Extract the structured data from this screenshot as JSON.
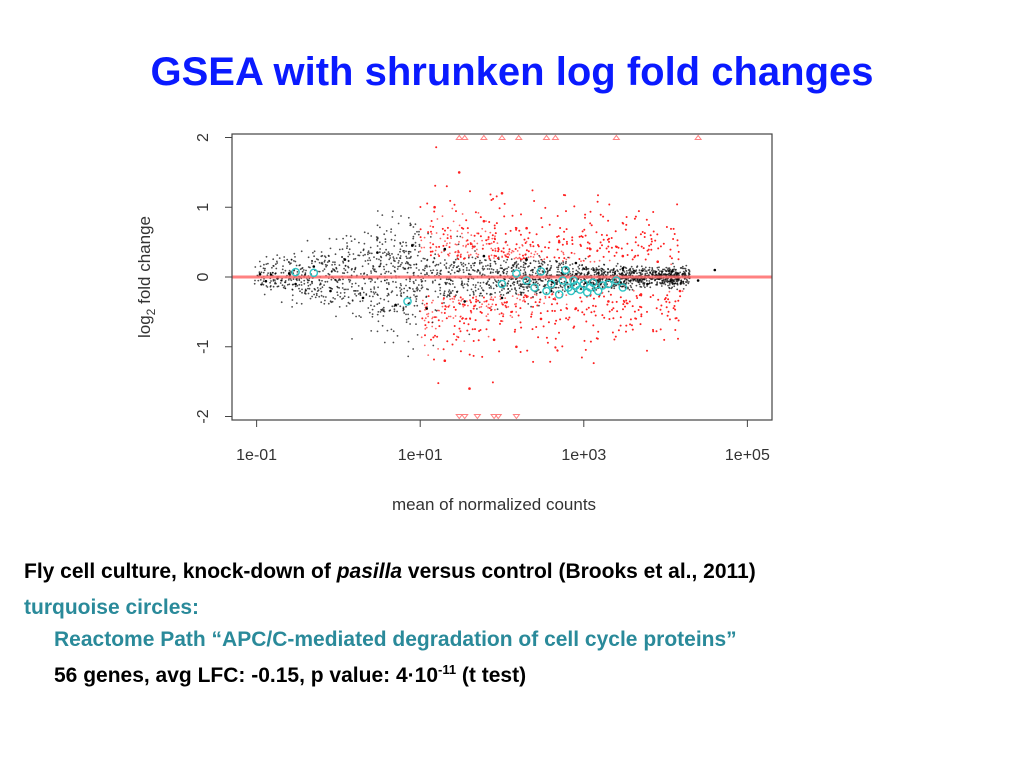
{
  "slide": {
    "title": "GSEA with shrunken log fold changes",
    "caption": {
      "line1_before": "Fly cell culture, knock-down of ",
      "line1_italic": "pasilla",
      "line1_after": " versus control  (Brooks et al., 2011)",
      "line2": "turquoise circles:",
      "line3": "Reactome Path “APC/C-mediated degradation of cell cycle proteins”",
      "line4_before": "56 genes, avg LFC: -0.15,  p value: 4",
      "line4_dot": "·",
      "line4_base": "10",
      "line4_exp": "-11",
      "line4_after": " (t test)"
    }
  },
  "chart_data": {
    "type": "scatter",
    "title": "",
    "xlabel": "mean of normalized counts",
    "ylabel_parts": [
      "log",
      "2",
      " fold change"
    ],
    "x_scale": "log10",
    "xlim": [
      0.05,
      200000
    ],
    "ylim": [
      -2.05,
      2.05
    ],
    "x_ticks": [
      0.1,
      10,
      1000,
      100000
    ],
    "x_tick_labels": [
      "1e-01",
      "1e+01",
      "1e+03",
      "1e+05"
    ],
    "y_ticks": [
      -2,
      -1,
      0,
      1,
      2
    ],
    "y_tick_labels": [
      "-2",
      "-1",
      "0",
      "1",
      "2"
    ],
    "grid": false,
    "reference_line": {
      "y": 0,
      "color": "#ff6b6b"
    },
    "colors": {
      "non_significant": "#000000",
      "significant": "#ff2020",
      "gene_set": "#2ec4c4",
      "off_scale": "#ff8080"
    },
    "series": [
      {
        "description": "non-significant genes (black points)",
        "marker": "dot",
        "points": [
          [
            0.11,
            0.04
          ],
          [
            0.13,
            -0.06
          ],
          [
            0.15,
            0.03
          ],
          [
            0.18,
            -0.02
          ],
          [
            0.25,
            0.05
          ],
          [
            0.3,
            -0.1
          ],
          [
            0.5,
            0.15
          ],
          [
            0.8,
            -0.2
          ],
          [
            1.2,
            0.25
          ],
          [
            2,
            -0.3
          ],
          [
            3,
            0.35
          ],
          [
            5,
            -0.4
          ],
          [
            8,
            0.45
          ],
          [
            12,
            -0.45
          ],
          [
            20,
            0.4
          ],
          [
            35,
            -0.35
          ],
          [
            60,
            0.3
          ],
          [
            100,
            -0.3
          ],
          [
            200,
            0.25
          ],
          [
            400,
            -0.2
          ],
          [
            800,
            0.2
          ],
          [
            1500,
            -0.15
          ],
          [
            3000,
            0.12
          ],
          [
            6000,
            -0.1
          ],
          [
            12000,
            0.08
          ],
          [
            25000,
            -0.05
          ],
          [
            40000,
            0.1
          ]
        ]
      },
      {
        "description": "significant genes (red points)",
        "marker": "dot",
        "points": [
          [
            15,
            1.0
          ],
          [
            20,
            -1.2
          ],
          [
            30,
            1.5
          ],
          [
            40,
            -1.6
          ],
          [
            60,
            0.8
          ],
          [
            80,
            -0.9
          ],
          [
            100,
            1.2
          ],
          [
            150,
            -1.0
          ],
          [
            200,
            0.7
          ],
          [
            300,
            -0.6
          ],
          [
            500,
            0.5
          ],
          [
            800,
            -0.45
          ],
          [
            1200,
            0.4
          ],
          [
            2000,
            -0.35
          ],
          [
            3000,
            0.3
          ],
          [
            5000,
            -0.25
          ],
          [
            8000,
            0.22
          ],
          [
            15000,
            -0.2
          ]
        ]
      },
      {
        "description": "genes outside y range (open triangles)",
        "marker": "triangle",
        "points": [
          [
            30,
            2
          ],
          [
            35,
            2
          ],
          [
            60,
            2
          ],
          [
            100,
            2
          ],
          [
            160,
            2
          ],
          [
            350,
            2
          ],
          [
            450,
            2
          ],
          [
            2500,
            2
          ],
          [
            25000,
            2
          ],
          [
            30,
            -2
          ],
          [
            35,
            -2
          ],
          [
            50,
            -2
          ],
          [
            80,
            -2
          ],
          [
            90,
            -2
          ],
          [
            150,
            -2
          ]
        ]
      },
      {
        "description": "turquoise circles: Reactome APC/C gene set",
        "marker": "circle",
        "points": [
          [
            0.5,
            0.06
          ],
          [
            0.3,
            0.07
          ],
          [
            7,
            -0.35
          ],
          [
            100,
            -0.1
          ],
          [
            150,
            0.05
          ],
          [
            200,
            -0.05
          ],
          [
            250,
            -0.15
          ],
          [
            300,
            0.08
          ],
          [
            350,
            -0.2
          ],
          [
            400,
            -0.1
          ],
          [
            500,
            -0.25
          ],
          [
            550,
            -0.05
          ],
          [
            600,
            0.1
          ],
          [
            650,
            -0.15
          ],
          [
            700,
            -0.2
          ],
          [
            750,
            -0.05
          ],
          [
            800,
            -0.12
          ],
          [
            900,
            -0.18
          ],
          [
            1000,
            -0.1
          ],
          [
            1100,
            -0.22
          ],
          [
            1200,
            -0.15
          ],
          [
            1300,
            -0.08
          ],
          [
            1500,
            -0.2
          ],
          [
            1700,
            -0.12
          ],
          [
            2000,
            -0.1
          ],
          [
            2500,
            -0.05
          ],
          [
            3000,
            -0.15
          ]
        ]
      }
    ]
  }
}
